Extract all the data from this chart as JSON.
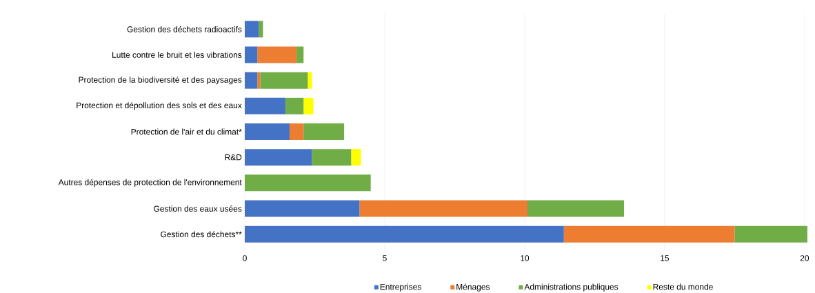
{
  "chart_data": {
    "type": "bar",
    "orientation": "horizontal",
    "stacked": true,
    "categories": [
      "Gestion des déchets radioactifs",
      "Lutte contre le bruit et les vibrations",
      "Protection de la biodiversité et des paysages",
      "Protection et dépollution des sols et des eaux",
      "Protection de l'air et du climat*",
      "R&D",
      "Autres dépenses de protection de l'environnement",
      "Gestion des eaux usées",
      "Gestion des déchets**"
    ],
    "series": [
      {
        "name": "Entreprises",
        "color": "#4472c4",
        "values": [
          0.5,
          0.45,
          0.45,
          1.45,
          1.6,
          2.4,
          0,
          4.1,
          11.4
        ]
      },
      {
        "name": "Ménages",
        "color": "#ed7d31",
        "values": [
          0,
          1.4,
          0.1,
          0,
          0.5,
          0,
          0,
          6.0,
          6.1
        ]
      },
      {
        "name": "Administrations publiques",
        "color": "#70ad47",
        "values": [
          0.15,
          0.25,
          1.7,
          0.65,
          1.45,
          1.4,
          4.5,
          3.45,
          2.6
        ]
      },
      {
        "name": "Reste du monde",
        "color": "#ffff00",
        "values": [
          0,
          0,
          0.15,
          0.35,
          0,
          0.35,
          0,
          0,
          0
        ]
      }
    ],
    "xlim": [
      0,
      20.2
    ],
    "xticks": [
      0,
      5,
      10,
      15,
      20
    ],
    "grid": "x",
    "legend": "bottom"
  }
}
